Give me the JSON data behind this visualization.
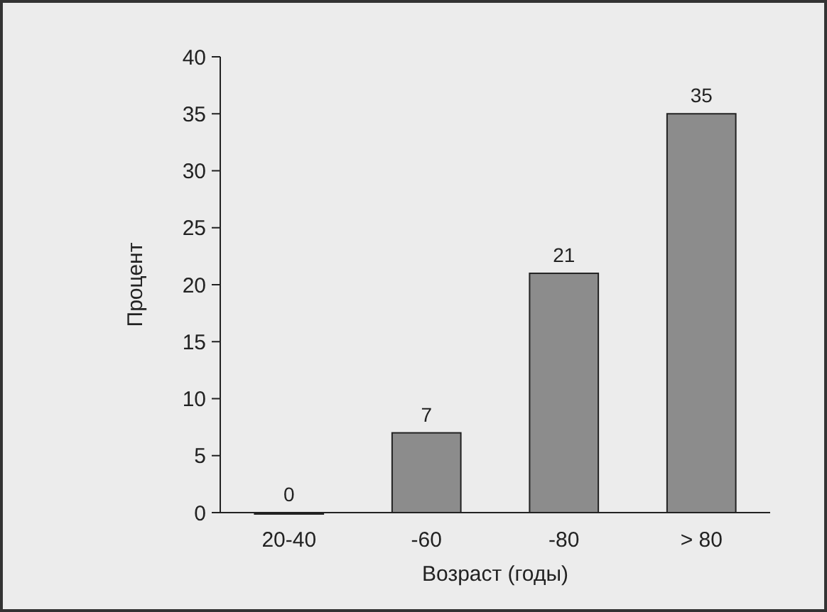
{
  "chart_data": {
    "type": "bar",
    "xlabel": "Возраст (годы)",
    "ylabel": "Процент",
    "categories": [
      "20-40",
      "-60",
      "-80",
      "> 80"
    ],
    "values": [
      0,
      7,
      21,
      35
    ],
    "color": "#8c8c8c",
    "ylim": [
      0,
      40
    ],
    "yticks": [
      0,
      5,
      10,
      15,
      20,
      25,
      30,
      35,
      40
    ],
    "data_labels": true,
    "grid": false
  }
}
